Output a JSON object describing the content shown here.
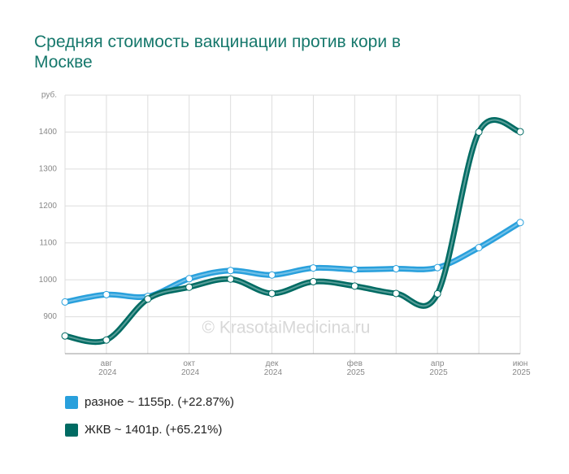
{
  "chart_data": {
    "type": "line",
    "title": "Средняя стоимость вакцинации против кори в Москве",
    "annotation": "© KrasotaiMedicina.ru",
    "categories": [
      null,
      "авг 2024",
      null,
      "окт 2024",
      null,
      "дек 2024",
      null,
      "фев 2025",
      null,
      "апр 2025",
      null,
      "июн 2025"
    ],
    "series": [
      {
        "name": "разное ~ 1155р. (+22.87%)",
        "color": "#29a0dc",
        "values": [
          940,
          960,
          955,
          1003,
          1025,
          1013,
          1032,
          1028,
          1030,
          1033,
          1087,
          1155
        ]
      },
      {
        "name": "ЖКВ ~ 1401р. (+65.21%)",
        "color": "#006b63",
        "values": [
          848,
          837,
          948,
          980,
          1002,
          963,
          995,
          983,
          963,
          962,
          1400,
          1401
        ]
      }
    ],
    "ylim": [
      800,
      1500
    ],
    "yticks": [
      900,
      1000,
      1100,
      1200,
      1300,
      1400,
      {
        "value": 1500,
        "label": "руб."
      }
    ],
    "grid": true
  }
}
